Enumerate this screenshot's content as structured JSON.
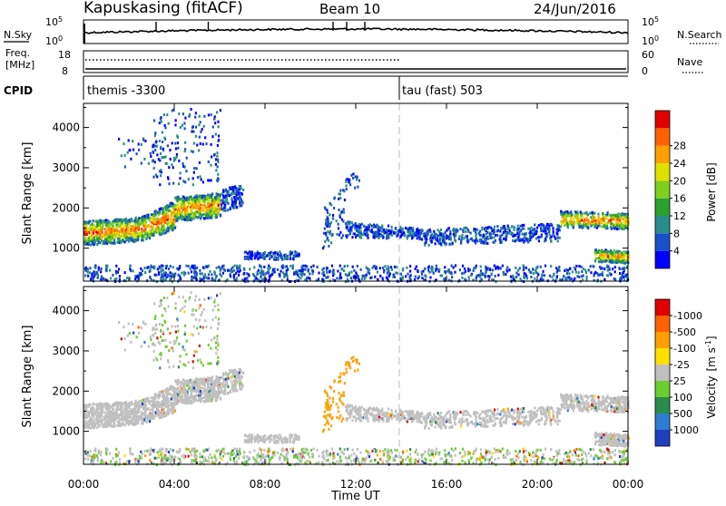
{
  "header": {
    "station": "Kapuskasing (fitACF)",
    "beam": "Beam 10",
    "date": "24/Jun/2016"
  },
  "noise_panel": {
    "left_label": "N.Sky",
    "right_label": "N.Search",
    "left_ticks": [
      {
        "base": "10",
        "exp": "5"
      },
      {
        "base": "10",
        "exp": "0"
      }
    ],
    "right_ticks": [
      {
        "base": "10",
        "exp": "5"
      },
      {
        "base": "10",
        "exp": "0"
      }
    ]
  },
  "freq_panel": {
    "left_label_lines": [
      "Freq.",
      "[MHz]"
    ],
    "right_label": "Nave",
    "left_ticks": [
      "18",
      "8"
    ],
    "right_ticks": [
      "60",
      "0"
    ]
  },
  "cpid_panel": {
    "label": "CPID",
    "segments": [
      "themis -3300",
      "tau (fast) 503"
    ]
  },
  "chart_data": [
    {
      "type": "heatmap",
      "panel": "power",
      "xlabel": "Time UT",
      "ylabel": "Slant Range [km]",
      "x_ticks": [
        "00:00",
        "04:00",
        "08:00",
        "12:00",
        "16:00",
        "20:00",
        "00:00"
      ],
      "xlim_hours": [
        0,
        24
      ],
      "y_ticks": [
        1000,
        2000,
        3000,
        4000
      ],
      "ylim": [
        180,
        4600
      ],
      "colorbar": {
        "label": "Power [dB]",
        "ticks": [
          "4",
          "8",
          "12",
          "16",
          "20",
          "24",
          "28"
        ],
        "colors": [
          "#0000ff",
          "#1850c8",
          "#2a8c8c",
          "#2ca02c",
          "#7fcf1f",
          "#e0e000",
          "#ffa000",
          "#ff6000",
          "#e00000"
        ]
      },
      "features": [
        {
          "name": "morning-echo-band",
          "t_start_h": 0,
          "t_end_h": 7,
          "range_km": [
            1100,
            2400
          ]
        },
        {
          "name": "afternoon-echo-band",
          "t_start_h": 12,
          "t_end_h": 21,
          "range_km": [
            1200,
            1800
          ]
        },
        {
          "name": "evening-echo-band",
          "t_start_h": 21,
          "t_end_h": 24,
          "range_km": [
            700,
            2000
          ]
        },
        {
          "name": "near-range-scatter",
          "t_start_h": 0,
          "t_end_h": 24,
          "range_km": [
            180,
            600
          ]
        }
      ]
    },
    {
      "type": "heatmap",
      "panel": "velocity",
      "xlabel": "Time UT",
      "ylabel": "Slant Range [km]",
      "x_ticks": [
        "00:00",
        "04:00",
        "08:00",
        "12:00",
        "16:00",
        "20:00",
        "00:00"
      ],
      "xlim_hours": [
        0,
        24
      ],
      "y_ticks": [
        1000,
        2000,
        3000,
        4000
      ],
      "ylim": [
        180,
        4600
      ],
      "colorbar": {
        "label": "Velocity",
        "label_unit": "[m s",
        "label_sup": "-1",
        "label_close": "]",
        "ticks": [
          "1000",
          "500",
          "100",
          "25",
          "-25",
          "-100",
          "-500",
          "-1000"
        ],
        "colors": [
          "#2040c0",
          "#2e7dd0",
          "#2a8c4a",
          "#6ccf30",
          "#c0c0c0",
          "#ffe000",
          "#ffa000",
          "#ff6000",
          "#e00000"
        ]
      },
      "features": [
        {
          "name": "ground-scatter-band",
          "t_start_h": 0,
          "t_end_h": 24,
          "range_km": [
            700,
            2400
          ]
        },
        {
          "name": "near-range-scatter",
          "t_start_h": 0,
          "t_end_h": 24,
          "range_km": [
            180,
            700
          ]
        }
      ]
    }
  ]
}
